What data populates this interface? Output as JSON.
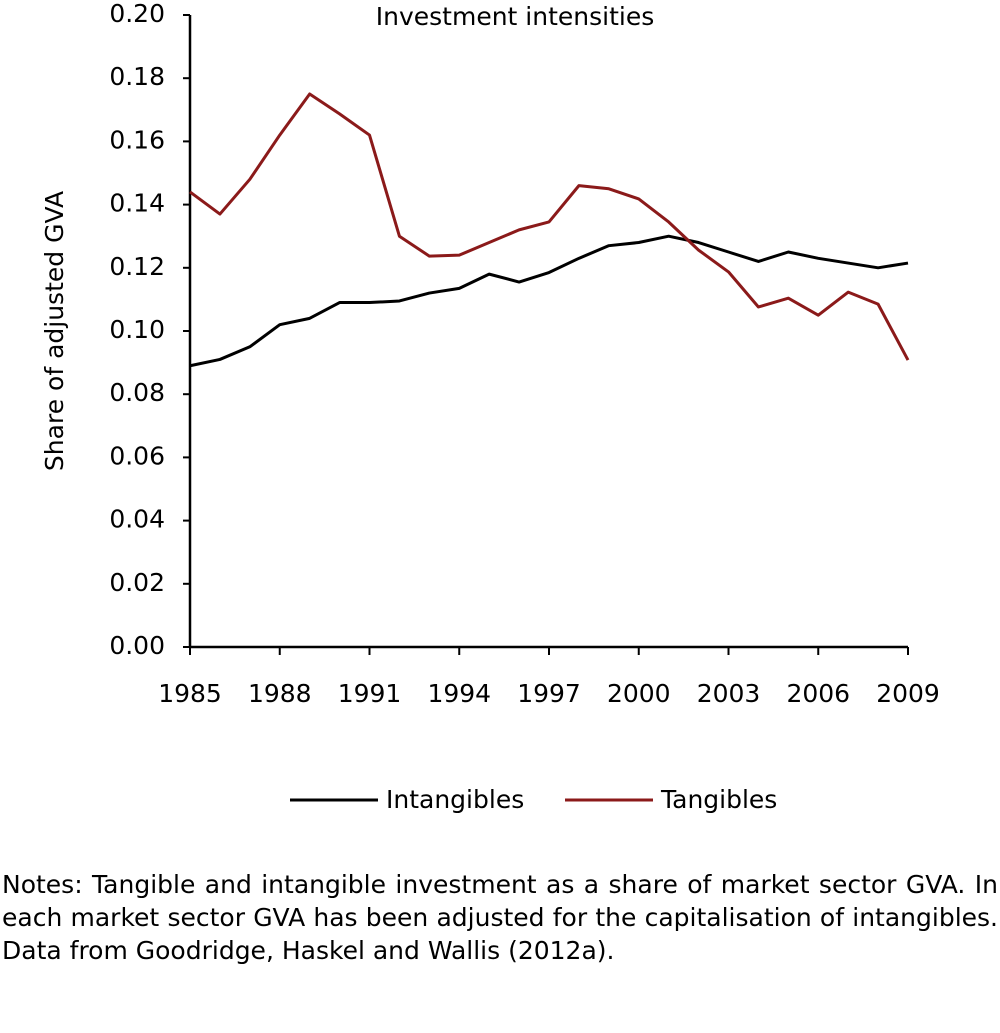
{
  "chart_data": {
    "type": "line",
    "title": "Investment intensities",
    "y_label": "Share of adjusted GVA",
    "x": [
      1985,
      1986,
      1987,
      1988,
      1989,
      1990,
      1991,
      1992,
      1993,
      1994,
      1995,
      1996,
      1997,
      1998,
      1999,
      2000,
      2001,
      2002,
      2003,
      2004,
      2005,
      2006,
      2007,
      2008,
      2009
    ],
    "series": [
      {
        "name": "Intangibles",
        "color": "#000000",
        "values": [
          0.089,
          0.091,
          0.095,
          0.102,
          0.104,
          0.109,
          0.109,
          0.1095,
          0.112,
          0.1135,
          0.118,
          0.1155,
          0.1185,
          0.123,
          0.127,
          0.128,
          0.13,
          0.128,
          0.125,
          0.122,
          0.125,
          0.123,
          0.1215,
          0.12,
          0.1215
        ]
      },
      {
        "name": "Tangibles",
        "color": "#8b1a1a",
        "values": [
          0.144,
          0.137,
          0.148,
          0.162,
          0.175,
          0.1687,
          0.162,
          0.13,
          0.1237,
          0.124,
          0.128,
          0.132,
          0.1345,
          0.146,
          0.145,
          0.1418,
          0.1345,
          0.1256,
          0.1187,
          0.1076,
          0.1104,
          0.105,
          0.1123,
          0.1085,
          0.0908
        ]
      }
    ],
    "xlim": [
      1985,
      2009
    ],
    "xticks": [
      1985,
      1988,
      1991,
      1994,
      1997,
      2000,
      2003,
      2006,
      2009
    ],
    "ylim": [
      0,
      0.2
    ],
    "yticks": [
      {
        "value": 0,
        "label": "0.00"
      },
      {
        "value": 0.02,
        "label": "0.02"
      },
      {
        "value": 0.04,
        "label": "0.04"
      },
      {
        "value": 0.06,
        "label": "0.06"
      },
      {
        "value": 0.08,
        "label": "0.08"
      },
      {
        "value": 0.1,
        "label": "0.10"
      },
      {
        "value": 0.12,
        "label": "0.12"
      },
      {
        "value": 0.14,
        "label": "0.14"
      },
      {
        "value": 0.16,
        "label": "0.16"
      },
      {
        "value": 0.18,
        "label": "0.18"
      },
      {
        "value": 0.2,
        "label": "0.20"
      }
    ],
    "grid": false,
    "legend": "bottom",
    "note": "Notes: Tangible and intangible investment as a share of market sector GVA.  In each market sector GVA has been adjusted for the capitalisation of intangibles.  Data from Goodridge, Haskel and Wallis (2012a)."
  }
}
